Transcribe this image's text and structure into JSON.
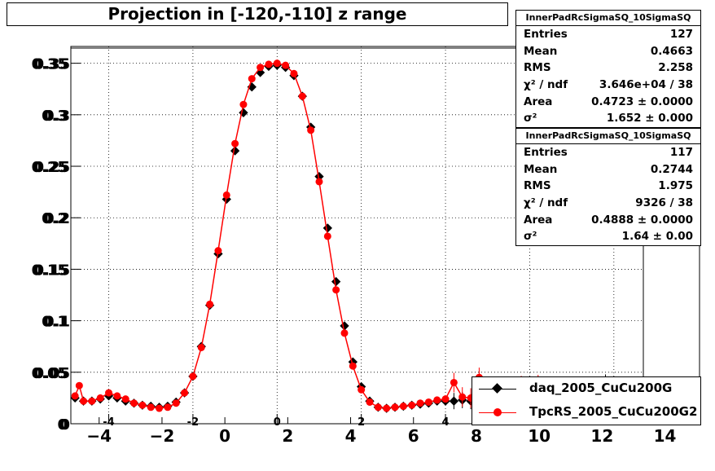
{
  "title": "Projection in [-120,-110] z range",
  "colors": {
    "series1": "#000000",
    "series2": "#ff0000"
  },
  "stats": [
    {
      "name": "InnerPadRcSigmaSQ_10SigmaSQ",
      "rows": [
        {
          "label": "Entries",
          "value": "127"
        },
        {
          "label": "Mean",
          "value": "0.4663"
        },
        {
          "label": "RMS",
          "value": "2.258"
        },
        {
          "label": "χ² / ndf",
          "value": "3.646e+04 / 38"
        },
        {
          "label": "Area",
          "value": "0.4723 ± 0.0000"
        },
        {
          "label": "σ²",
          "value": "1.652 ± 0.000"
        }
      ]
    },
    {
      "name": "InnerPadRcSigmaSQ_10SigmaSQ",
      "rows": [
        {
          "label": "Entries",
          "value": "117"
        },
        {
          "label": "Mean",
          "value": "0.2744"
        },
        {
          "label": "RMS",
          "value": "1.975"
        },
        {
          "label": "χ² / ndf",
          "value": "9326 / 38"
        },
        {
          "label": "Area",
          "value": "0.4888 ± 0.0000"
        },
        {
          "label": "σ²",
          "value": "1.64 ± 0.00"
        }
      ]
    }
  ],
  "legend": [
    "daq_2005_CuCu200G",
    "TpcRS_2005_CuCu200G2"
  ],
  "chart_data": {
    "type": "scatter",
    "title": "Projection in [-120,-110] z range",
    "xlim": [
      -4.9,
      15.1
    ],
    "ylim": [
      0,
      0.36
    ],
    "frame_xlim": [
      -4.9,
      8.7
    ],
    "x_ticks": [
      -4,
      -2,
      0,
      2,
      4,
      6,
      8,
      10,
      12,
      14
    ],
    "inner_x_ticks": [
      -4,
      -2,
      0,
      2,
      4,
      6,
      8
    ],
    "y_ticks": [
      0,
      0.05,
      0.1,
      0.15,
      0.2,
      0.25,
      0.3,
      0.35
    ],
    "y_tick_labels": [
      "0",
      "0.05",
      "0.1",
      "0.15",
      "0.2",
      "0.25",
      "0.3",
      "0.35"
    ],
    "grid": true,
    "legend_position": "bottom-right",
    "series": [
      {
        "name": "daq_2005_CuCu200G",
        "x": [
          -4.8,
          -4.6,
          -4.4,
          -4.2,
          -4.0,
          -3.8,
          -3.6,
          -3.4,
          -3.2,
          -3.0,
          -2.8,
          -2.6,
          -2.4,
          -2.2,
          -2.0,
          -1.8,
          -1.6,
          -1.4,
          -1.2,
          -1.0,
          -0.8,
          -0.6,
          -0.4,
          -0.2,
          0.0,
          0.2,
          0.4,
          0.6,
          0.8,
          1.0,
          1.2,
          1.4,
          1.6,
          1.8,
          2.0,
          2.2,
          2.4,
          2.6,
          2.8,
          3.0,
          3.2,
          3.4,
          3.6,
          3.8,
          4.0,
          4.2,
          4.4,
          4.6,
          4.8,
          5.0,
          5.2,
          5.4,
          5.6,
          5.8,
          6.0,
          6.2,
          6.4,
          6.6,
          6.8,
          7.0,
          7.2,
          7.4,
          7.6,
          7.8
        ],
        "y": [
          0.025,
          0.022,
          0.022,
          0.024,
          0.027,
          0.025,
          0.022,
          0.02,
          0.018,
          0.017,
          0.016,
          0.017,
          0.021,
          0.03,
          0.046,
          0.075,
          0.115,
          0.165,
          0.218,
          0.265,
          0.302,
          0.327,
          0.341,
          0.347,
          0.348,
          0.346,
          0.338,
          0.318,
          0.288,
          0.24,
          0.19,
          0.138,
          0.095,
          0.06,
          0.036,
          0.022,
          0.016,
          0.015,
          0.016,
          0.017,
          0.018,
          0.019,
          0.02,
          0.022,
          0.022,
          0.022,
          0.023,
          0.022,
          0.021,
          0.022,
          0.022,
          0.02,
          0.018,
          0.019,
          0.02,
          0.018,
          0.017,
          0.019,
          0.022,
          0.036,
          0.028,
          0.033,
          0.037,
          0.04
        ]
      },
      {
        "name": "TpcRS_2005_CuCu200G2",
        "x": [
          -4.8,
          -4.7,
          -4.6,
          -4.4,
          -4.2,
          -4.0,
          -3.8,
          -3.6,
          -3.4,
          -3.2,
          -3.0,
          -2.8,
          -2.6,
          -2.4,
          -2.2,
          -2.0,
          -1.8,
          -1.6,
          -1.4,
          -1.2,
          -1.0,
          -0.8,
          -0.6,
          -0.4,
          -0.2,
          0.0,
          0.2,
          0.4,
          0.6,
          0.8,
          1.0,
          1.2,
          1.4,
          1.6,
          1.8,
          2.0,
          2.2,
          2.4,
          2.6,
          2.8,
          3.0,
          3.2,
          3.4,
          3.6,
          3.8,
          4.0,
          4.2,
          4.4,
          4.6,
          4.8,
          5.0,
          5.2,
          5.4,
          5.6,
          5.8,
          6.0,
          6.2,
          6.4,
          6.6,
          6.8
        ],
        "y": [
          0.027,
          0.037,
          0.022,
          0.022,
          0.025,
          0.03,
          0.027,
          0.024,
          0.02,
          0.018,
          0.016,
          0.015,
          0.016,
          0.02,
          0.03,
          0.046,
          0.074,
          0.116,
          0.168,
          0.222,
          0.272,
          0.31,
          0.335,
          0.346,
          0.349,
          0.35,
          0.348,
          0.34,
          0.318,
          0.285,
          0.235,
          0.182,
          0.13,
          0.088,
          0.056,
          0.033,
          0.021,
          0.016,
          0.015,
          0.016,
          0.017,
          0.018,
          0.02,
          0.021,
          0.023,
          0.024,
          0.04,
          0.026,
          0.025,
          0.045,
          0.02,
          0.033,
          0.021,
          0.019,
          0.037,
          0.022,
          0.038,
          0.02,
          0.022,
          0.026
        ]
      }
    ]
  }
}
